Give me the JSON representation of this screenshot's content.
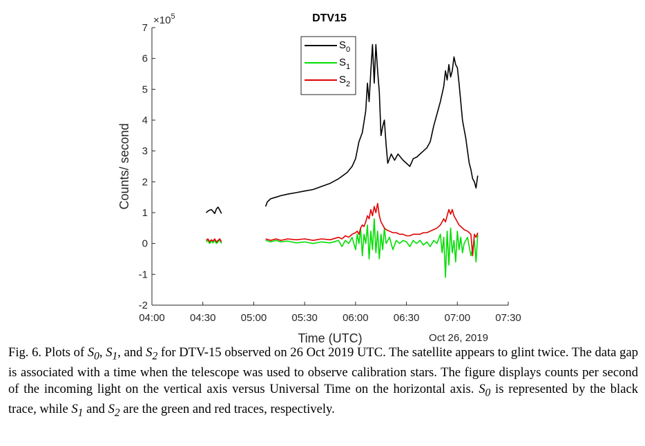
{
  "chart_data": {
    "type": "line",
    "title": "DTV15",
    "xlabel": "Time (UTC)",
    "ylabel": "Counts/ second",
    "y_multiplier": "×10",
    "y_multiplier_exp": "5",
    "date_note": "Oct 26, 2019",
    "x_ticks": [
      "04:00",
      "04:30",
      "05:00",
      "05:30",
      "06:00",
      "06:30",
      "07:00",
      "07:30"
    ],
    "x_range_minutes": [
      240,
      450
    ],
    "y_ticks": [
      -2,
      -1,
      0,
      1,
      2,
      3,
      4,
      5,
      6,
      7
    ],
    "ylim": [
      -2,
      7
    ],
    "legend_position": "top-center",
    "series": [
      {
        "name": "S0",
        "color": "#000000",
        "segments": [
          [
            [
              272,
              1.0
            ],
            [
              273,
              1.05
            ],
            [
              274,
              1.08
            ],
            [
              275,
              1.1
            ],
            [
              276,
              1.04
            ],
            [
              277,
              0.97
            ],
            [
              278,
              1.12
            ],
            [
              279,
              1.18
            ],
            [
              280,
              1.08
            ],
            [
              281,
              0.97
            ]
          ],
          [
            [
              307,
              1.2
            ],
            [
              308,
              1.35
            ],
            [
              310,
              1.45
            ],
            [
              313,
              1.5
            ],
            [
              316,
              1.55
            ],
            [
              320,
              1.6
            ],
            [
              325,
              1.65
            ],
            [
              330,
              1.7
            ],
            [
              335,
              1.75
            ],
            [
              340,
              1.85
            ],
            [
              345,
              1.95
            ],
            [
              350,
              2.1
            ],
            [
              355,
              2.3
            ],
            [
              358,
              2.5
            ],
            [
              360,
              2.75
            ],
            [
              362,
              3.3
            ],
            [
              364,
              3.6
            ],
            [
              366,
              4.3
            ],
            [
              367,
              5.2
            ],
            [
              368,
              4.6
            ],
            [
              369,
              5.6
            ],
            [
              370,
              6.45
            ],
            [
              371,
              5.2
            ],
            [
              372,
              6.45
            ],
            [
              373,
              5.6
            ],
            [
              374,
              4.9
            ],
            [
              375,
              3.5
            ],
            [
              376,
              3.8
            ],
            [
              377,
              4.0
            ],
            [
              378,
              3.2
            ],
            [
              379,
              2.6
            ],
            [
              381,
              2.9
            ],
            [
              383,
              2.7
            ],
            [
              385,
              2.9
            ],
            [
              388,
              2.7
            ],
            [
              390,
              2.6
            ],
            [
              392,
              2.5
            ],
            [
              394,
              2.75
            ],
            [
              396,
              2.8
            ],
            [
              398,
              2.9
            ],
            [
              400,
              3.0
            ],
            [
              402,
              3.1
            ],
            [
              404,
              3.3
            ],
            [
              406,
              3.8
            ],
            [
              408,
              4.2
            ],
            [
              410,
              4.6
            ],
            [
              412,
              5.1
            ],
            [
              413,
              5.6
            ],
            [
              414,
              5.3
            ],
            [
              415,
              5.8
            ],
            [
              416,
              5.4
            ],
            [
              417,
              5.6
            ],
            [
              418,
              6.05
            ],
            [
              419,
              5.8
            ],
            [
              420,
              5.7
            ],
            [
              421,
              5.2
            ],
            [
              422,
              4.6
            ],
            [
              423,
              4.0
            ],
            [
              424,
              3.7
            ],
            [
              425,
              3.4
            ],
            [
              426,
              3.0
            ],
            [
              427,
              2.6
            ],
            [
              428,
              2.4
            ],
            [
              429,
              2.1
            ],
            [
              430,
              2.0
            ],
            [
              431,
              1.8
            ],
            [
              432,
              2.2
            ]
          ]
        ]
      },
      {
        "name": "S1",
        "color": "#00dd00",
        "segments": [
          [
            [
              272,
              0.05
            ],
            [
              273,
              0.1
            ],
            [
              274,
              0.0
            ],
            [
              275,
              0.08
            ],
            [
              276,
              0.02
            ],
            [
              277,
              0.1
            ],
            [
              278,
              0.0
            ],
            [
              279,
              0.05
            ],
            [
              280,
              0.12
            ],
            [
              281,
              0.0
            ]
          ],
          [
            [
              307,
              0.1
            ],
            [
              310,
              0.05
            ],
            [
              313,
              0.1
            ],
            [
              316,
              0.05
            ],
            [
              320,
              0.08
            ],
            [
              325,
              0.02
            ],
            [
              330,
              0.05
            ],
            [
              335,
              0.0
            ],
            [
              340,
              0.05
            ],
            [
              345,
              0.02
            ],
            [
              350,
              0.1
            ],
            [
              352,
              -0.1
            ],
            [
              354,
              0.1
            ],
            [
              356,
              0.0
            ],
            [
              358,
              0.2
            ],
            [
              360,
              -0.2
            ],
            [
              361,
              0.3
            ],
            [
              362,
              0.0
            ],
            [
              363,
              0.5
            ],
            [
              364,
              -0.4
            ],
            [
              365,
              0.3
            ],
            [
              366,
              0.0
            ],
            [
              367,
              0.6
            ],
            [
              368,
              -0.5
            ],
            [
              369,
              0.4
            ],
            [
              370,
              -0.2
            ],
            [
              371,
              0.8
            ],
            [
              372,
              -0.3
            ],
            [
              373,
              0.4
            ],
            [
              374,
              -0.5
            ],
            [
              375,
              0.3
            ],
            [
              376,
              -0.2
            ],
            [
              377,
              0.5
            ],
            [
              378,
              0.0
            ],
            [
              380,
              0.2
            ],
            [
              382,
              -0.2
            ],
            [
              384,
              0.1
            ],
            [
              386,
              0.0
            ],
            [
              388,
              0.1
            ],
            [
              390,
              0.05
            ],
            [
              392,
              -0.1
            ],
            [
              394,
              0.1
            ],
            [
              396,
              0.0
            ],
            [
              398,
              0.1
            ],
            [
              400,
              -0.05
            ],
            [
              402,
              0.05
            ],
            [
              404,
              -0.1
            ],
            [
              406,
              0.1
            ],
            [
              408,
              0.0
            ],
            [
              410,
              0.3
            ],
            [
              411,
              -0.3
            ],
            [
              412,
              0.2
            ],
            [
              413,
              -1.1
            ],
            [
              414,
              0.4
            ],
            [
              415,
              -0.7
            ],
            [
              416,
              0.5
            ],
            [
              417,
              -0.3
            ],
            [
              418,
              0.1
            ],
            [
              419,
              -0.6
            ],
            [
              420,
              0.4
            ],
            [
              421,
              -0.2
            ],
            [
              422,
              0.2
            ],
            [
              423,
              -0.3
            ],
            [
              424,
              0.0
            ],
            [
              426,
              0.2
            ],
            [
              428,
              -0.4
            ],
            [
              430,
              0.1
            ],
            [
              431,
              -0.6
            ],
            [
              432,
              0.3
            ]
          ]
        ]
      },
      {
        "name": "S2",
        "color": "#e00000",
        "segments": [
          [
            [
              272,
              0.1
            ],
            [
              273,
              0.15
            ],
            [
              274,
              0.05
            ],
            [
              275,
              0.12
            ],
            [
              276,
              0.08
            ],
            [
              277,
              0.15
            ],
            [
              278,
              0.05
            ],
            [
              279,
              0.1
            ],
            [
              280,
              0.15
            ],
            [
              281,
              0.05
            ]
          ],
          [
            [
              307,
              0.15
            ],
            [
              310,
              0.1
            ],
            [
              313,
              0.15
            ],
            [
              316,
              0.1
            ],
            [
              320,
              0.15
            ],
            [
              325,
              0.12
            ],
            [
              330,
              0.15
            ],
            [
              335,
              0.1
            ],
            [
              340,
              0.15
            ],
            [
              345,
              0.12
            ],
            [
              350,
              0.2
            ],
            [
              352,
              0.15
            ],
            [
              354,
              0.25
            ],
            [
              356,
              0.2
            ],
            [
              358,
              0.3
            ],
            [
              360,
              0.35
            ],
            [
              361,
              0.4
            ],
            [
              362,
              0.3
            ],
            [
              363,
              0.5
            ],
            [
              364,
              0.6
            ],
            [
              365,
              0.55
            ],
            [
              366,
              0.7
            ],
            [
              367,
              0.9
            ],
            [
              368,
              0.8
            ],
            [
              369,
              1.1
            ],
            [
              370,
              0.9
            ],
            [
              371,
              1.2
            ],
            [
              372,
              1.0
            ],
            [
              373,
              1.3
            ],
            [
              374,
              0.9
            ],
            [
              375,
              0.7
            ],
            [
              376,
              0.6
            ],
            [
              377,
              0.5
            ],
            [
              378,
              0.45
            ],
            [
              380,
              0.4
            ],
            [
              382,
              0.35
            ],
            [
              384,
              0.35
            ],
            [
              386,
              0.3
            ],
            [
              388,
              0.3
            ],
            [
              390,
              0.25
            ],
            [
              392,
              0.25
            ],
            [
              394,
              0.3
            ],
            [
              396,
              0.3
            ],
            [
              398,
              0.3
            ],
            [
              400,
              0.35
            ],
            [
              402,
              0.35
            ],
            [
              404,
              0.4
            ],
            [
              406,
              0.45
            ],
            [
              408,
              0.5
            ],
            [
              410,
              0.6
            ],
            [
              411,
              0.7
            ],
            [
              412,
              0.8
            ],
            [
              413,
              0.7
            ],
            [
              414,
              0.9
            ],
            [
              415,
              1.1
            ],
            [
              416,
              0.95
            ],
            [
              417,
              1.1
            ],
            [
              418,
              0.9
            ],
            [
              419,
              0.8
            ],
            [
              420,
              0.7
            ],
            [
              421,
              0.6
            ],
            [
              422,
              0.55
            ],
            [
              423,
              0.5
            ],
            [
              424,
              0.45
            ],
            [
              426,
              0.4
            ],
            [
              428,
              0.3
            ],
            [
              429,
              -0.4
            ],
            [
              430,
              0.3
            ],
            [
              431,
              0.2
            ],
            [
              432,
              0.35
            ]
          ]
        ]
      }
    ]
  },
  "caption": {
    "p1": "Fig. 6. Plots of ",
    "s0_sym": "S",
    "s0_sub": "0",
    "p2": ", ",
    "s1_sym": "S",
    "s1_sub": "1",
    "p3": ", and ",
    "s2_sym": "S",
    "s2_sub": "2",
    "p4": " for DTV-15 observed on 26 Oct 2019 UTC. The satellite appears to glint twice. The data gap is associated with a time when the telescope was used to observe calibration stars. The figure displays counts per second of the incoming light on the vertical axis versus Universal Time on the horizontal axis. ",
    "s0b_sym": "S",
    "s0b_sub": "0",
    "p5": " is represented by the black trace, while ",
    "s1b_sym": "S",
    "s1b_sub": "1",
    "p6": " and ",
    "s2b_sym": "S",
    "s2b_sub": "2",
    "p7": " are the green and red traces, respectively."
  }
}
